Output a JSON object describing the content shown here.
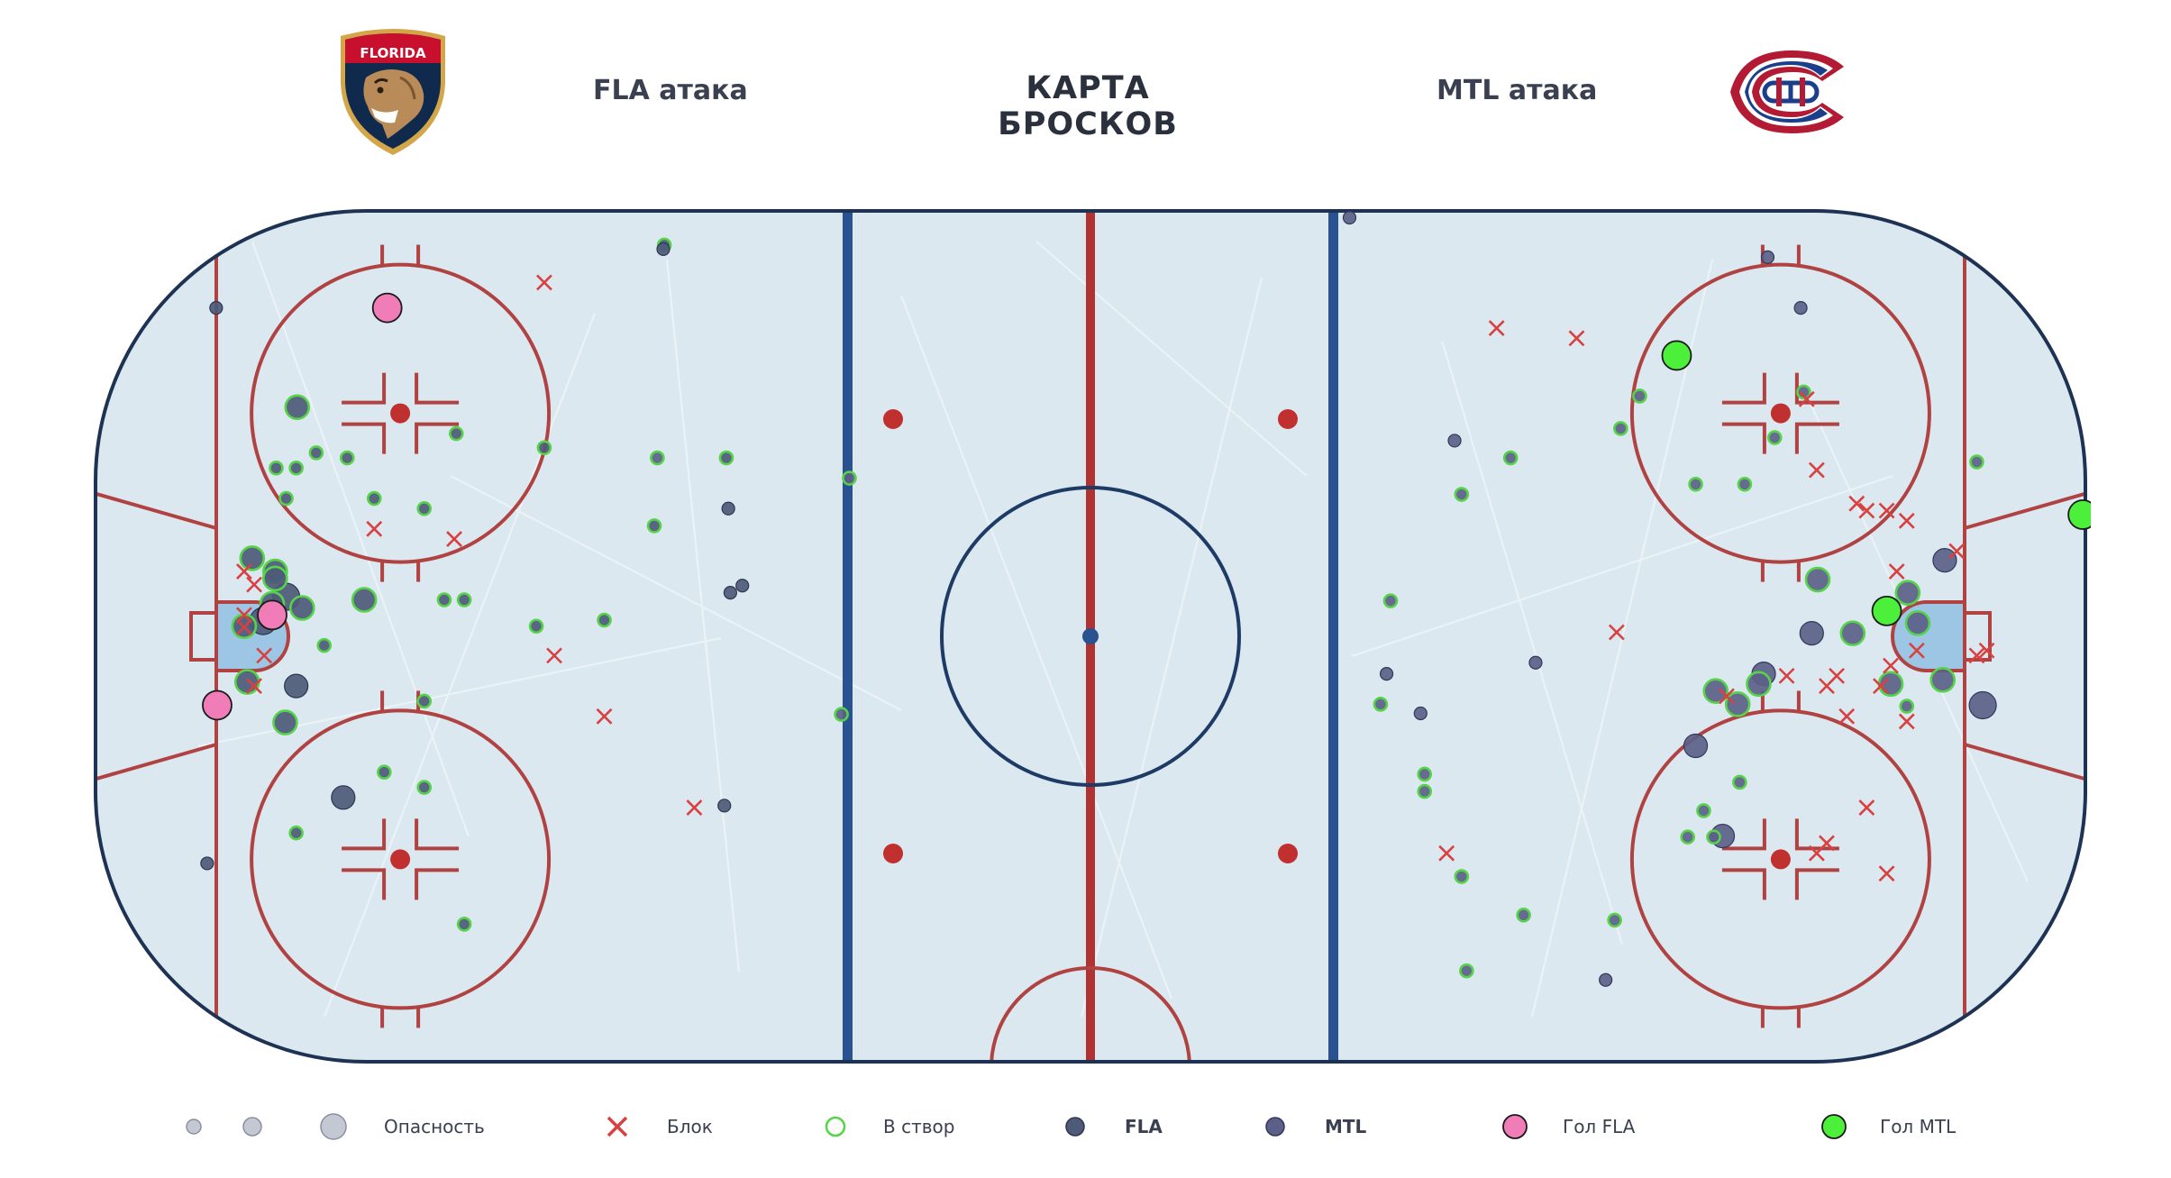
{
  "header": {
    "title": "КАРТА БРОСКОВ",
    "left_label": "FLA атака",
    "right_label": "MTL атака",
    "left_logo": "florida-panthers-logo",
    "left_logo_text": "FLORIDA",
    "right_logo": "montreal-canadiens-logo"
  },
  "colors": {
    "fla": "#4d5a78",
    "mtl": "#5c6088",
    "on_goal_ring": "#57d34a",
    "block": "#d94040",
    "goal_fla": "#f07cb8",
    "goal_mtl": "#4cf03a",
    "ice": "#dfeaf1",
    "rink_line_red": "#b04242",
    "rink_line_blue": "#2a5190",
    "rink_border": "#1e3253"
  },
  "legend": {
    "danger": "Опасность",
    "block": "Блок",
    "on_goal": "В створ",
    "fla": "FLA",
    "mtl": "MTL",
    "goal_fla": "Гол FLA",
    "goal_mtl": "Гол MTL"
  },
  "chart_data": {
    "type": "scatter",
    "title": "КАРТА БРОСКОВ",
    "x_axis": "rink length, feet (-100 to 100)",
    "y_axis": "rink width, feet (-42.5 to 42.5)",
    "xlim": [
      -100,
      100
    ],
    "ylim": [
      -42.5,
      42.5
    ],
    "legend": "bottom",
    "point_fields": [
      "x",
      "y",
      "size",
      "kind"
    ],
    "series": [
      {
        "name": "FLA",
        "points": [
          [
            -87.4,
            32.4,
            1,
            "shot"
          ],
          [
            -88.3,
            -22.4,
            1,
            "shot"
          ],
          [
            -74.7,
            -15.9,
            2,
            "shot"
          ],
          [
            -79.4,
            -4.9,
            2,
            "shot"
          ],
          [
            -80.4,
            3.9,
            3,
            "shot"
          ],
          [
            -82.7,
            1.5,
            3,
            "shot"
          ],
          [
            -81.5,
            6.4,
            2,
            "on_goal"
          ],
          [
            -84.3,
            -4.5,
            2,
            "on_goal"
          ],
          [
            -84.6,
            1.0,
            2,
            "on_goal"
          ],
          [
            -80.5,
            -8.5,
            2,
            "on_goal"
          ],
          [
            -81.8,
            3.2,
            2,
            "on_goal"
          ],
          [
            -78.8,
            2.8,
            2,
            "on_goal"
          ],
          [
            -81.5,
            5.7,
            2,
            "on_goal"
          ],
          [
            -79.3,
            22.6,
            2,
            "on_goal"
          ],
          [
            -81.4,
            16.6,
            1,
            "on_goal"
          ],
          [
            -79.4,
            16.6,
            1,
            "on_goal"
          ],
          [
            -80.4,
            13.6,
            1,
            "on_goal"
          ],
          [
            -77.4,
            18.1,
            1,
            "on_goal"
          ],
          [
            -74.3,
            17.6,
            1,
            "on_goal"
          ],
          [
            -71.6,
            13.6,
            1,
            "on_goal"
          ],
          [
            -64.6,
            3.6,
            1,
            "on_goal"
          ],
          [
            -72.6,
            3.6,
            2,
            "on_goal"
          ],
          [
            -66.6,
            -6.4,
            1,
            "on_goal"
          ],
          [
            -66.6,
            12.6,
            1,
            "on_goal"
          ],
          [
            -70.6,
            -13.4,
            1,
            "on_goal"
          ],
          [
            -66.6,
            -14.9,
            1,
            "on_goal"
          ],
          [
            -79.4,
            -19.4,
            1,
            "on_goal"
          ],
          [
            -62.6,
            -28.4,
            1,
            "on_goal"
          ],
          [
            -48.6,
            1.6,
            1,
            "on_goal"
          ],
          [
            -54.6,
            18.6,
            1,
            "on_goal"
          ],
          [
            -62.6,
            3.6,
            1,
            "on_goal"
          ],
          [
            -42.6,
            38.6,
            1,
            "on_goal"
          ],
          [
            -36.4,
            17.6,
            1,
            "on_goal"
          ],
          [
            -83.8,
            7.7,
            2,
            "on_goal"
          ],
          [
            -76.6,
            -0.9,
            1,
            "on_goal"
          ],
          [
            -43.6,
            10.9,
            1,
            "on_goal"
          ],
          [
            -63.4,
            20.0,
            1,
            "on_goal"
          ],
          [
            -55.4,
            1.0,
            1,
            "on_goal"
          ],
          [
            -42.7,
            38.2,
            1,
            "shot"
          ],
          [
            -36.2,
            12.6,
            1,
            "shot"
          ],
          [
            -34.8,
            5.0,
            1,
            "shot"
          ],
          [
            -36.0,
            4.3,
            1,
            "shot"
          ],
          [
            -36.6,
            -16.7,
            1,
            "shot"
          ]
        ]
      },
      {
        "name": "MTL",
        "points": [
          [
            25.9,
            41.3,
            1,
            "shot"
          ],
          [
            67.7,
            37.4,
            1,
            "shot"
          ],
          [
            71.0,
            32.4,
            1,
            "shot"
          ],
          [
            36.4,
            19.3,
            1,
            "shot"
          ],
          [
            29.6,
            -3.7,
            1,
            "shot"
          ],
          [
            33.0,
            -7.6,
            1,
            "shot"
          ],
          [
            44.5,
            -2.6,
            1,
            "shot"
          ],
          [
            67.3,
            -3.7,
            2,
            "shot"
          ],
          [
            72.1,
            0.3,
            2,
            "shot"
          ],
          [
            85.4,
            7.5,
            2,
            "shot"
          ],
          [
            89.2,
            -6.8,
            3,
            "shot"
          ],
          [
            60.5,
            -10.8,
            2,
            "shot"
          ],
          [
            63.2,
            -19.7,
            2,
            "shot"
          ],
          [
            51.5,
            -33.9,
            1,
            "shot"
          ],
          [
            54.9,
            23.7,
            1,
            "on_goal"
          ],
          [
            42.0,
            17.6,
            1,
            "on_goal"
          ],
          [
            37.1,
            14.0,
            1,
            "on_goal"
          ],
          [
            29.0,
            -6.7,
            1,
            "on_goal"
          ],
          [
            30.0,
            3.5,
            1,
            "on_goal"
          ],
          [
            33.4,
            -15.3,
            1,
            "on_goal"
          ],
          [
            33.4,
            -13.6,
            1,
            "on_goal"
          ],
          [
            37.1,
            -23.7,
            1,
            "on_goal"
          ],
          [
            53.0,
            20.5,
            1,
            "on_goal"
          ],
          [
            71.3,
            24.1,
            1,
            "on_goal"
          ],
          [
            65.4,
            15.0,
            1,
            "on_goal"
          ],
          [
            60.5,
            15.0,
            1,
            "on_goal"
          ],
          [
            68.4,
            19.6,
            1,
            "on_goal"
          ],
          [
            72.7,
            5.6,
            2,
            "on_goal"
          ],
          [
            66.8,
            -4.7,
            2,
            "on_goal"
          ],
          [
            64.7,
            -6.7,
            2,
            "on_goal"
          ],
          [
            62.5,
            -5.4,
            2,
            "on_goal"
          ],
          [
            76.2,
            0.3,
            2,
            "on_goal"
          ],
          [
            80.0,
            -4.7,
            2,
            "on_goal"
          ],
          [
            81.7,
            4.3,
            2,
            "on_goal"
          ],
          [
            82.7,
            1.3,
            2,
            "on_goal"
          ],
          [
            85.2,
            -4.3,
            2,
            "on_goal"
          ],
          [
            81.6,
            -6.9,
            1,
            "on_goal"
          ],
          [
            61.3,
            -17.2,
            1,
            "on_goal"
          ],
          [
            64.9,
            -14.4,
            1,
            "on_goal"
          ],
          [
            59.7,
            -19.8,
            1,
            "on_goal"
          ],
          [
            62.3,
            -19.8,
            1,
            "on_goal"
          ],
          [
            88.6,
            17.2,
            1,
            "on_goal"
          ],
          [
            52.4,
            -28.0,
            1,
            "on_goal"
          ],
          [
            43.3,
            -27.5,
            1,
            "on_goal"
          ],
          [
            37.6,
            -33.0,
            1,
            "on_goal"
          ],
          [
            -43.3,
            17.6,
            1,
            "on_goal"
          ],
          [
            -24.9,
            -7.7,
            1,
            "on_goal"
          ],
          [
            -24.1,
            15.6,
            1,
            "on_goal"
          ]
        ]
      }
    ],
    "blocks": [
      [
        -54.6,
        34.9
      ],
      [
        -71.6,
        10.6
      ],
      [
        -63.6,
        9.6
      ],
      [
        -53.6,
        -1.9
      ],
      [
        -48.6,
        -7.9
      ],
      [
        -39.6,
        -16.9
      ],
      [
        -83.6,
        5.1
      ],
      [
        -84.6,
        2.1
      ],
      [
        -82.6,
        -1.9
      ],
      [
        -83.6,
        -4.9
      ],
      [
        -84.6,
        0.9
      ],
      [
        -84.6,
        6.4
      ],
      [
        40.6,
        30.4
      ],
      [
        48.6,
        29.4
      ],
      [
        52.6,
        0.4
      ],
      [
        63.6,
        -5.9
      ],
      [
        77.6,
        12.4
      ],
      [
        72.6,
        16.4
      ],
      [
        71.6,
        23.4
      ],
      [
        76.6,
        13.1
      ],
      [
        79.6,
        12.4
      ],
      [
        81.6,
        11.4
      ],
      [
        80.6,
        6.4
      ],
      [
        86.6,
        8.4
      ],
      [
        80.0,
        -2.9
      ],
      [
        79.0,
        -4.9
      ],
      [
        88.6,
        -1.9
      ],
      [
        69.6,
        -3.9
      ],
      [
        73.6,
        -4.9
      ],
      [
        75.6,
        -7.9
      ],
      [
        74.6,
        -3.9
      ],
      [
        77.6,
        -16.9
      ],
      [
        73.6,
        -20.4
      ],
      [
        79.6,
        -23.4
      ],
      [
        81.6,
        -8.4
      ],
      [
        35.6,
        -21.4
      ],
      [
        82.6,
        -1.4
      ],
      [
        89.6,
        -1.4
      ],
      [
        72.6,
        -21.4
      ]
    ],
    "goals": [
      {
        "team": "FLA",
        "x": -70.3,
        "y": 32.4
      },
      {
        "team": "FLA",
        "x": -81.8,
        "y": 2.1
      },
      {
        "team": "FLA",
        "x": -87.3,
        "y": -6.8
      },
      {
        "team": "MTL",
        "x": 58.6,
        "y": 27.7
      },
      {
        "team": "MTL",
        "x": 79.6,
        "y": 2.5
      },
      {
        "team": "MTL",
        "x": 99.2,
        "y": 12.0
      }
    ]
  }
}
